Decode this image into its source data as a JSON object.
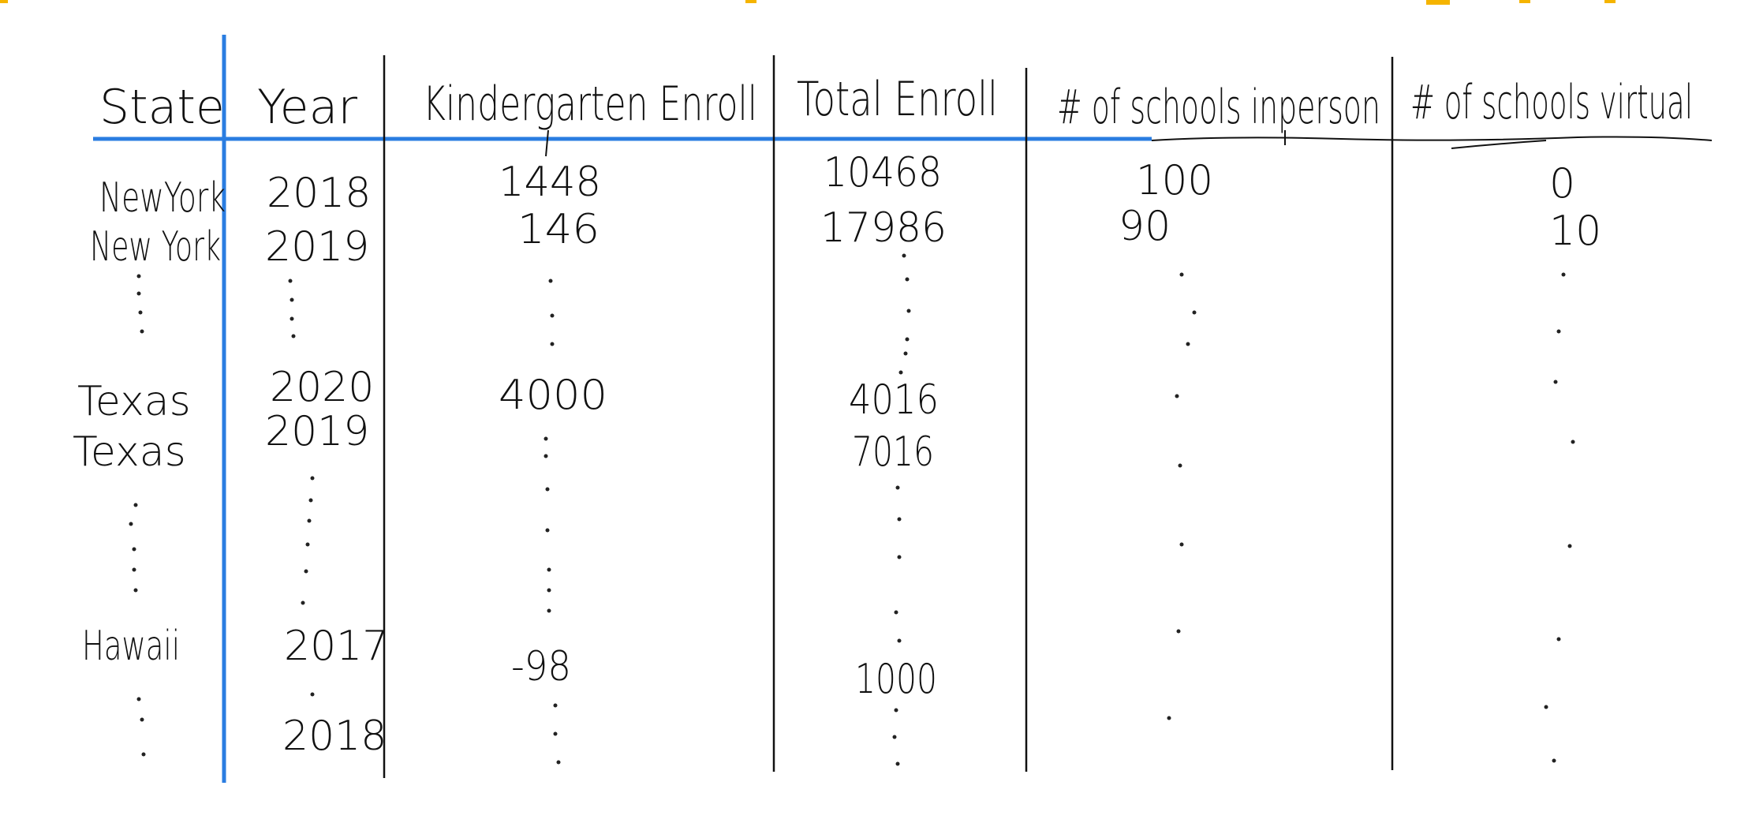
{
  "colors": {
    "ink": "#111111",
    "blue_rule": "#2a7de1",
    "top_highlight": "#f5b400"
  },
  "table": {
    "headers": [
      "State",
      "Year",
      "Kindergarten Enroll",
      "Total Enroll",
      "# of schools inperson",
      "# of schools virtual"
    ],
    "rows": [
      [
        "NewYork",
        "2018",
        "1448",
        "10468",
        "100",
        "0"
      ],
      [
        "New York",
        "2019",
        "146",
        "17986",
        "90",
        "10"
      ],
      [
        "Texas",
        "2020",
        "4000",
        "4016",
        "",
        ""
      ],
      [
        "Texas",
        "2019",
        "",
        "7016",
        "",
        ""
      ],
      [
        "Hawaii",
        "2017",
        "-98",
        "1000",
        "",
        ""
      ],
      [
        "",
        "2018",
        "",
        "",
        "",
        ""
      ]
    ]
  }
}
